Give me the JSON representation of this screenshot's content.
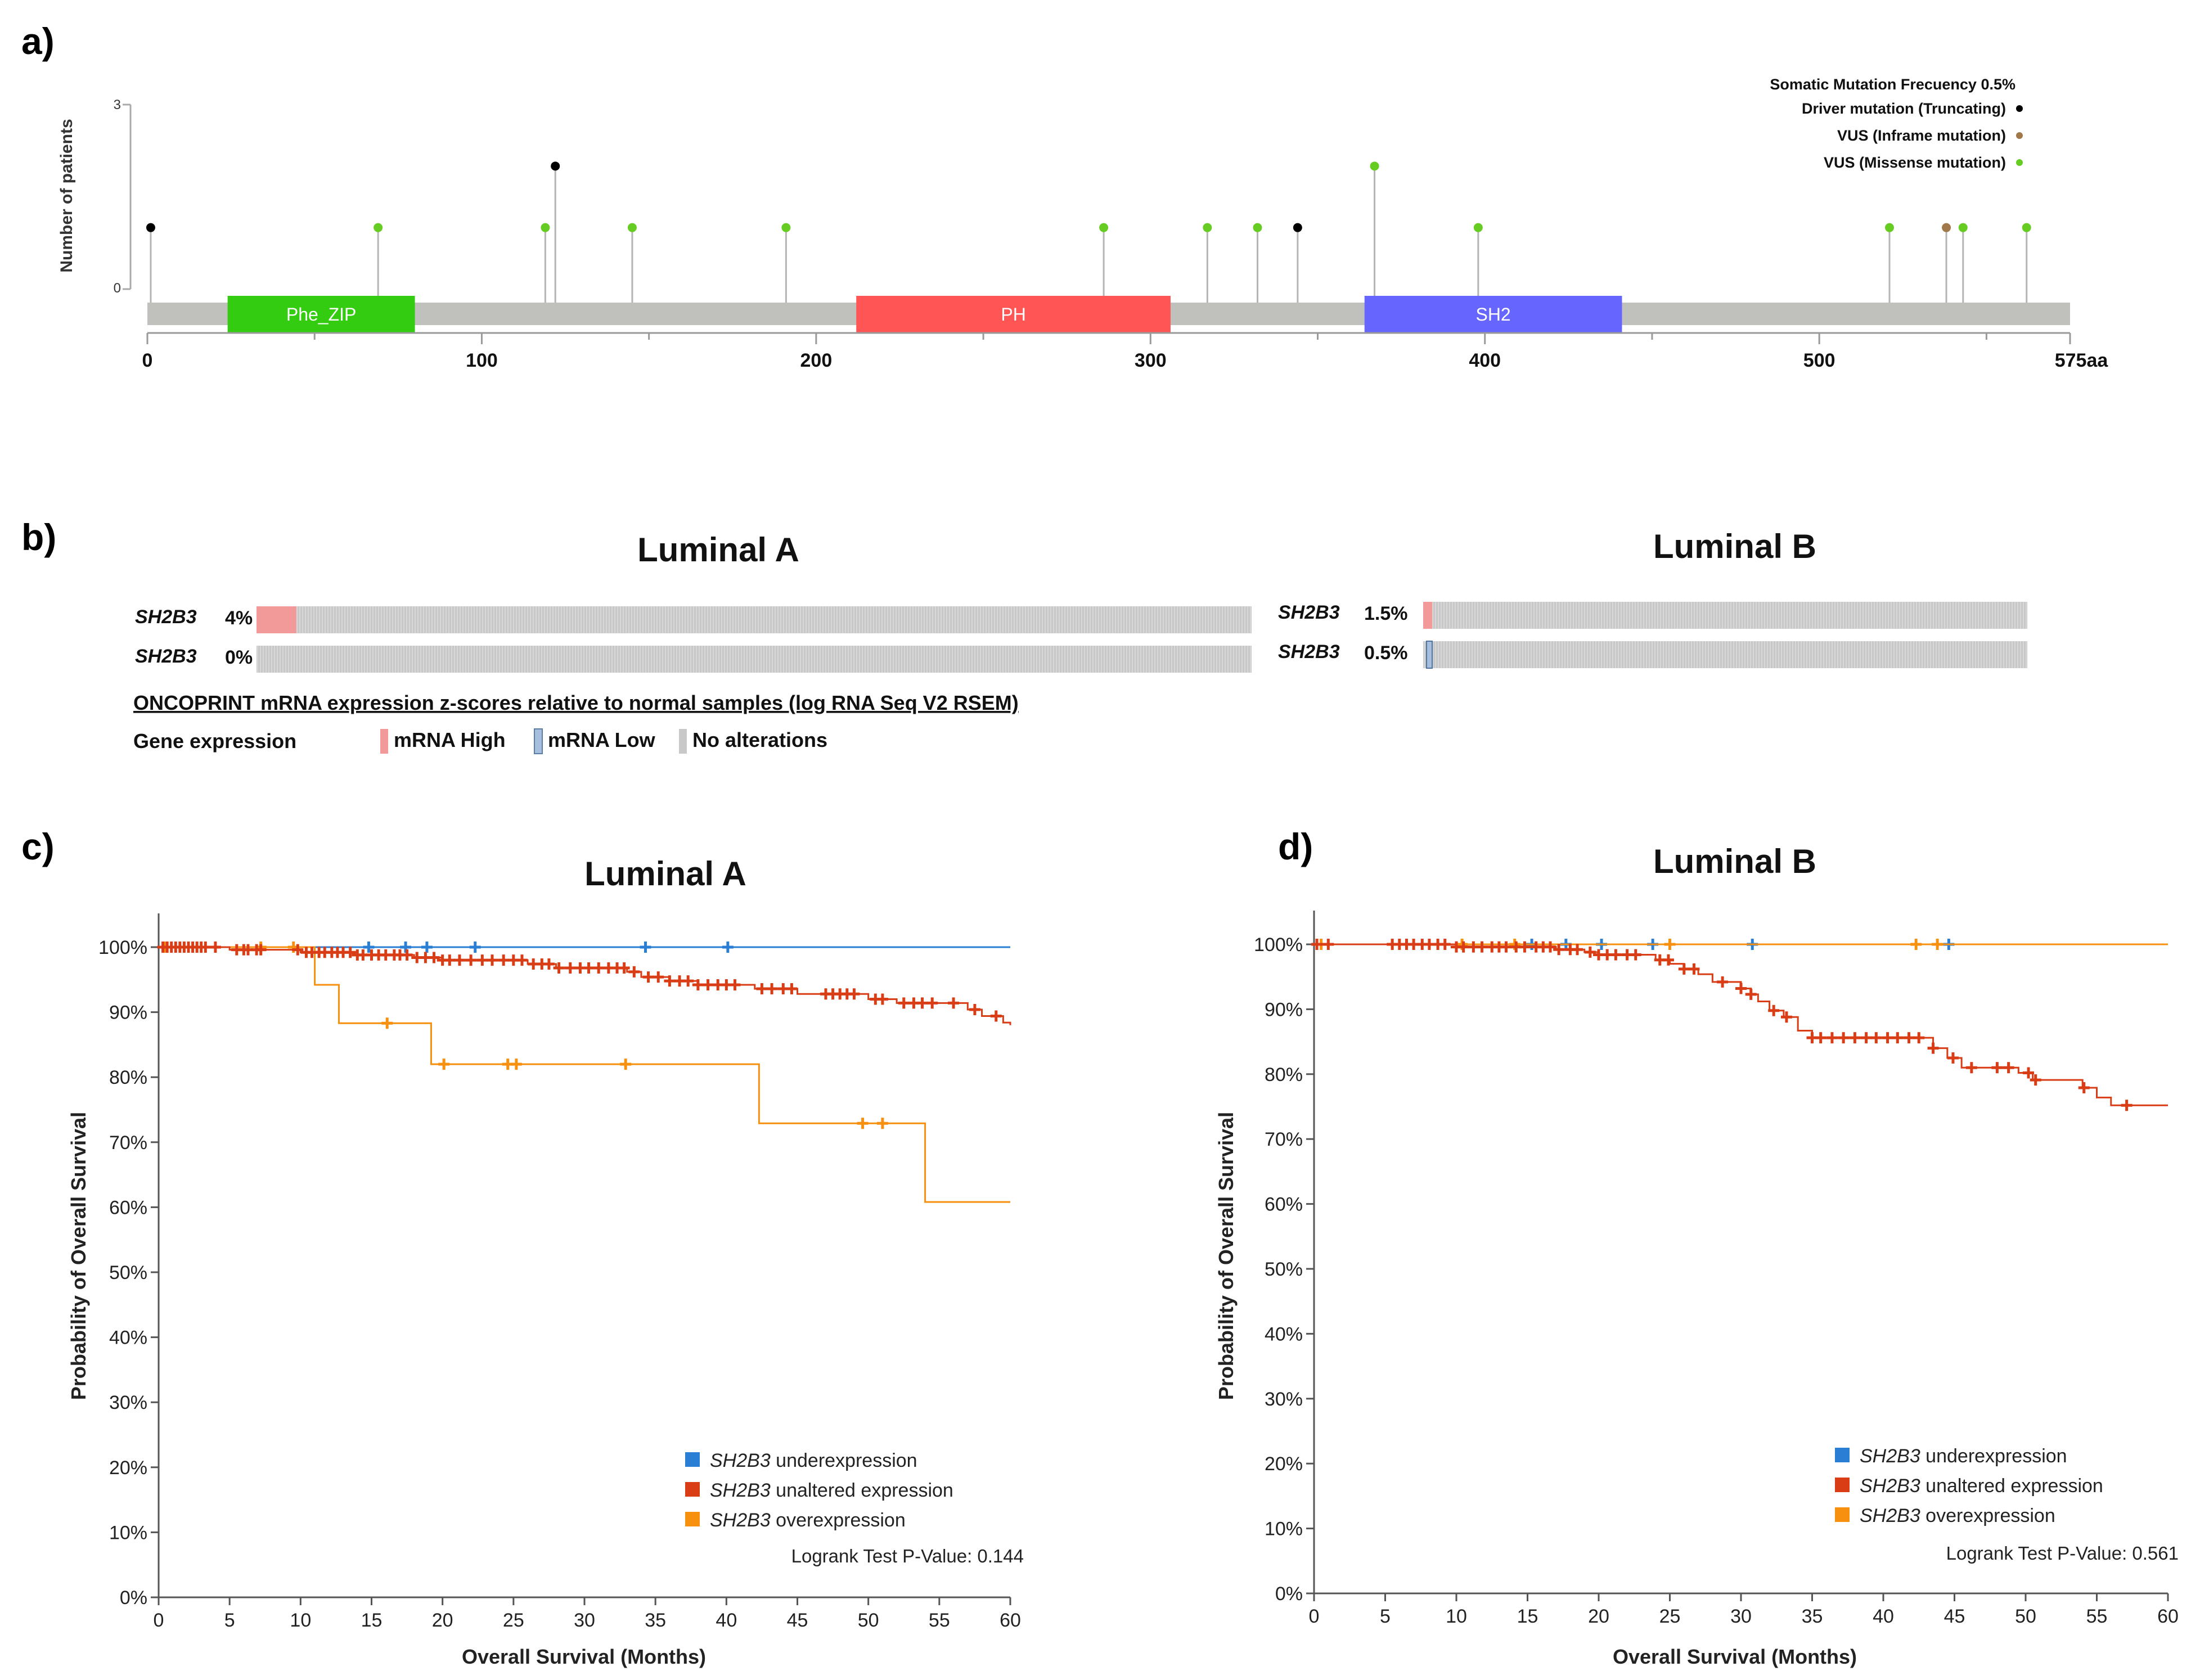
{
  "panels": {
    "a": "a)",
    "b": "b)",
    "c": "c)",
    "d": "d)"
  },
  "chart_data": [
    {
      "id": "lollipop",
      "type": "scatter",
      "subtype": "lollipop",
      "ylabel": "Number of patients",
      "yticks": [
        "0",
        "3"
      ],
      "ylim": [
        0,
        3
      ],
      "xlim": [
        0,
        575
      ],
      "xticks": [
        "0",
        "100",
        "200",
        "300",
        "400",
        "500",
        "575aa"
      ],
      "xtick_values": [
        0,
        100,
        200,
        300,
        400,
        500,
        575
      ],
      "legend": {
        "header": "Somatic Mutation Frecuency  0.5%",
        "items": [
          {
            "label": "Driver mutation (Truncating)",
            "color": "#000000"
          },
          {
            "label": "VUS (Inframe mutation)",
            "color": "#a0784a"
          },
          {
            "label": "VUS (Missense mutation)",
            "color": "#66cc22"
          }
        ]
      },
      "domains": [
        {
          "label": "Phe_ZIP",
          "start": 24,
          "end": 80,
          "color": "#33cc11"
        },
        {
          "label": "PH",
          "start": 212,
          "end": 306,
          "color": "#ff5555"
        },
        {
          "label": "SH2",
          "start": 364,
          "end": 441,
          "color": "#6666ff"
        }
      ],
      "mutations": [
        {
          "pos": 1,
          "count": 1,
          "kind": "driver"
        },
        {
          "pos": 69,
          "count": 1,
          "kind": "missense"
        },
        {
          "pos": 119,
          "count": 1,
          "kind": "missense"
        },
        {
          "pos": 122,
          "count": 2,
          "kind": "driver"
        },
        {
          "pos": 145,
          "count": 1,
          "kind": "missense"
        },
        {
          "pos": 191,
          "count": 1,
          "kind": "missense"
        },
        {
          "pos": 286,
          "count": 1,
          "kind": "missense"
        },
        {
          "pos": 317,
          "count": 1,
          "kind": "missense"
        },
        {
          "pos": 332,
          "count": 1,
          "kind": "missense"
        },
        {
          "pos": 344,
          "count": 1,
          "kind": "driver"
        },
        {
          "pos": 367,
          "count": 2,
          "kind": "missense"
        },
        {
          "pos": 398,
          "count": 1,
          "kind": "missense"
        },
        {
          "pos": 521,
          "count": 1,
          "kind": "missense"
        },
        {
          "pos": 538,
          "count": 1,
          "kind": "inframe"
        },
        {
          "pos": 543,
          "count": 1,
          "kind": "missense"
        },
        {
          "pos": 562,
          "count": 1,
          "kind": "missense"
        }
      ]
    },
    {
      "id": "onco-a",
      "type": "table",
      "title": "Luminal A",
      "rows": [
        {
          "gene": "SH2B3",
          "pct": "4%",
          "fraction": 0.04,
          "alt": "high"
        },
        {
          "gene": "SH2B3",
          "pct": "0%",
          "fraction": 0.0,
          "alt": "low"
        }
      ]
    },
    {
      "id": "onco-b",
      "type": "table",
      "title": "Luminal B",
      "rows": [
        {
          "gene": "SH2B3",
          "pct": "1.5%",
          "fraction": 0.015,
          "alt": "high"
        },
        {
          "gene": "SH2B3",
          "pct": "0.5%",
          "fraction": 0.005,
          "alt": "low"
        }
      ]
    },
    {
      "id": "km-a",
      "type": "line",
      "subtype": "kaplan-meier",
      "title": "Luminal A",
      "xlabel": "Overall Survival (Months)",
      "ylabel": "Probability of Overall Survival",
      "xlim": [
        0,
        60
      ],
      "ylim": [
        0,
        100
      ],
      "xticks": [
        0,
        5,
        10,
        15,
        20,
        25,
        30,
        35,
        40,
        45,
        50,
        55,
        60
      ],
      "yticks": [
        0,
        10,
        20,
        30,
        40,
        50,
        60,
        70,
        80,
        90,
        100
      ],
      "pvalue": "Logrank Test P-Value: 0.144",
      "legend": [
        {
          "name": "SH2B3",
          "suffix": " underexpression",
          "color": "#2a7fd4"
        },
        {
          "name": "SH2B3",
          "suffix": " unaltered expression",
          "color": "#d93d16"
        },
        {
          "name": "SH2B3",
          "suffix": " overexpression",
          "color": "#f7900f"
        }
      ],
      "series": [
        {
          "name": "underexpression",
          "color": "#2a7fd4",
          "steps": [
            [
              0,
              100
            ],
            [
              60,
              100
            ]
          ],
          "censor": [
            14.8,
            17.4,
            18.9,
            22.3,
            34.3,
            40.1
          ]
        },
        {
          "name": "unaltered expression",
          "color": "#d93d16",
          "steps": [
            [
              0,
              100
            ],
            [
              5,
              99.6
            ],
            [
              10,
              99.2
            ],
            [
              14,
              98.8
            ],
            [
              18,
              98.4
            ],
            [
              20,
              98.0
            ],
            [
              26,
              97.4
            ],
            [
              28,
              96.8
            ],
            [
              33,
              96.2
            ],
            [
              34,
              95.4
            ],
            [
              36,
              94.8
            ],
            [
              38,
              94.2
            ],
            [
              42,
              93.6
            ],
            [
              45,
              92.8
            ],
            [
              50,
              92.0
            ],
            [
              52,
              91.4
            ],
            [
              57,
              90.4
            ],
            [
              58,
              89.4
            ],
            [
              59.5,
              88.4
            ],
            [
              60,
              88.0
            ]
          ],
          "censor": [
            0.3,
            0.6,
            0.9,
            1.2,
            1.5,
            1.8,
            2.1,
            2.4,
            2.7,
            3.0,
            3.3,
            4.0,
            5.5,
            6.0,
            6.3,
            6.9,
            7.2,
            9.8,
            10.4,
            10.8,
            11.3,
            11.7,
            12.2,
            12.6,
            13.0,
            13.5,
            14.0,
            14.4,
            15.0,
            15.5,
            16.0,
            16.6,
            17.0,
            17.5,
            18.2,
            18.8,
            19.4,
            20.0,
            20.5,
            21.2,
            22.0,
            22.8,
            23.5,
            24.3,
            25.0,
            25.6,
            26.4,
            27.0,
            27.5,
            28.2,
            29.0,
            29.7,
            30.3,
            31.0,
            31.7,
            32.3,
            32.8,
            33.5,
            34.5,
            35.2,
            36.0,
            36.7,
            37.3,
            38.0,
            38.7,
            39.4,
            40.0,
            40.6,
            42.5,
            43.2,
            44.0,
            44.6,
            47.0,
            47.5,
            48.0,
            48.5,
            49.0,
            50.5,
            51.0,
            52.5,
            53.2,
            53.8,
            54.5,
            56.0,
            57.5,
            59.0
          ]
        },
        {
          "name": "overexpression",
          "color": "#f7900f",
          "steps": [
            [
              0,
              100
            ],
            [
              11,
              94.2
            ],
            [
              12.7,
              88.3
            ],
            [
              19.2,
              82.0
            ],
            [
              42.3,
              72.9
            ],
            [
              54,
              60.8
            ],
            [
              60,
              60.8
            ]
          ],
          "censor": [
            0.4,
            7.2,
            9.5,
            16.1,
            20.1,
            24.6,
            25.2,
            32.9,
            49.6,
            51.0
          ]
        }
      ]
    },
    {
      "id": "km-b",
      "type": "line",
      "subtype": "kaplan-meier",
      "title": "Luminal B",
      "xlabel": "Overall Survival (Months)",
      "ylabel": "Probability of Overall Survival",
      "xlim": [
        0,
        60
      ],
      "ylim": [
        0,
        100
      ],
      "xticks": [
        0,
        5,
        10,
        15,
        20,
        25,
        30,
        35,
        40,
        45,
        50,
        55,
        60
      ],
      "yticks": [
        0,
        10,
        20,
        30,
        40,
        50,
        60,
        70,
        80,
        90,
        100
      ],
      "pvalue": "Logrank Test P-Value: 0.561",
      "legend": [
        {
          "name": "SH2B3",
          "suffix": " underexpression",
          "color": "#2a7fd4"
        },
        {
          "name": "SH2B3",
          "suffix": " unaltered expression",
          "color": "#d93d16"
        },
        {
          "name": "SH2B3",
          "suffix": " overexpression",
          "color": "#f7900f"
        }
      ],
      "series": [
        {
          "name": "underexpression",
          "color": "#2a7fd4",
          "steps": [
            [
              0,
              100
            ],
            [
              45,
              100
            ]
          ],
          "censor": [
            15.3,
            17.7,
            20.2,
            23.8,
            30.8,
            44.6
          ]
        },
        {
          "name": "unaltered expression",
          "color": "#d93d16",
          "steps": [
            [
              0,
              100
            ],
            [
              10,
              99.6
            ],
            [
              17,
              99.2
            ],
            [
              19,
              98.8
            ],
            [
              20,
              98.4
            ],
            [
              24,
              97.6
            ],
            [
              25,
              97.0
            ],
            [
              26,
              96.2
            ],
            [
              27,
              95.4
            ],
            [
              28,
              94.2
            ],
            [
              30,
              93.2
            ],
            [
              30.7,
              92.3
            ],
            [
              31.2,
              91.2
            ],
            [
              32,
              89.8
            ],
            [
              33,
              88.8
            ],
            [
              34,
              86.7
            ],
            [
              35,
              85.6
            ],
            [
              43.5,
              84.0
            ],
            [
              44.5,
              82.5
            ],
            [
              45.5,
              81.0
            ],
            [
              49.5,
              80.2
            ],
            [
              50.5,
              79.1
            ],
            [
              54,
              77.9
            ],
            [
              55,
              76.4
            ],
            [
              56,
              75.2
            ],
            [
              60,
              75.2
            ]
          ],
          "censor": [
            0.2,
            1.0,
            5.5,
            6.0,
            6.5,
            7.0,
            7.6,
            8.1,
            8.7,
            9.2,
            10.0,
            10.5,
            11.2,
            11.8,
            12.5,
            13.0,
            13.5,
            14.2,
            14.8,
            15.6,
            16.1,
            16.6,
            17.2,
            18.0,
            18.5,
            19.4,
            20.0,
            20.6,
            21.2,
            22.0,
            22.6,
            24.3,
            24.9,
            26.0,
            26.7,
            28.7,
            30.0,
            30.7,
            32.3,
            33.2,
            35.0,
            35.6,
            36.4,
            37.2,
            38.0,
            38.8,
            39.5,
            40.3,
            41.0,
            41.8,
            42.5,
            43.5,
            44.9,
            46.2,
            48.0,
            48.8,
            50.2,
            50.7,
            54.1,
            57.1
          ]
        },
        {
          "name": "overexpression",
          "color": "#f7900f",
          "steps": [
            [
              0,
              100
            ],
            [
              60,
              100
            ]
          ],
          "censor": [
            0.5,
            10.4,
            14.1,
            25.0,
            42.3,
            43.8
          ]
        }
      ]
    }
  ],
  "oncoprint": {
    "note": "ONCOPRINT mRNA expression z-scores relative to normal samples (log RNA Seq V2 RSEM)",
    "legend_title": "Gene expression",
    "legend": [
      {
        "label": "mRNA High",
        "color": "#f29a9a"
      },
      {
        "label": "mRNA Low",
        "color": "#a7bfdc"
      },
      {
        "label": "No alterations",
        "color": "#c8c8c8"
      }
    ]
  }
}
